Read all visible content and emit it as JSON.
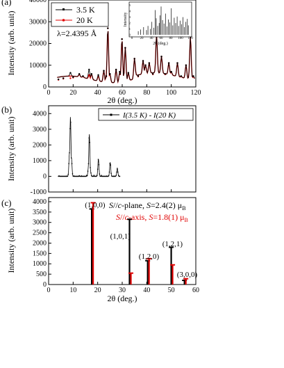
{
  "chart_data": [
    {
      "panel_label": "(a)",
      "type": "line",
      "xlabel": "2θ (deg.)",
      "ylabel": "Intensity (arb. unit)",
      "xlim": [
        0,
        120
      ],
      "ylim": [
        0,
        40000
      ],
      "xticks": [
        "0",
        "20",
        "40",
        "60",
        "80",
        "100",
        "120"
      ],
      "yticks": [
        "0",
        "10000",
        "20000",
        "30000",
        "40000"
      ],
      "annotation": "λ=2.4395 Å",
      "legend": {
        "placement": "top-left"
      },
      "series": [
        {
          "name": "3.5 K",
          "color": "#000000",
          "x": [
            8,
            12,
            17.8,
            20,
            25,
            28,
            33,
            35,
            40.5,
            45,
            47,
            48.3,
            50,
            55,
            58,
            59.8,
            62.5,
            65,
            70,
            73,
            77,
            79,
            82,
            85,
            88,
            92,
            95,
            98,
            100,
            105,
            108,
            112,
            115.6,
            118
          ],
          "y": [
            3500,
            4000,
            6500,
            4500,
            6000,
            5000,
            8000,
            6000,
            5500,
            7500,
            5000,
            27000,
            6000,
            8000,
            7000,
            22000,
            18000,
            6500,
            13000,
            5000,
            12000,
            10000,
            11000,
            6000,
            24000,
            14000,
            6000,
            11000,
            7000,
            11000,
            5000,
            10000,
            23000,
            5000
          ]
        },
        {
          "name": "20 K",
          "color": "#e00000",
          "x": [
            8,
            12,
            17.8,
            20,
            25,
            28,
            33,
            35,
            40.5,
            45,
            47,
            48.3,
            50,
            55,
            58,
            59.8,
            62.5,
            65,
            70,
            73,
            77,
            79,
            82,
            85,
            88,
            92,
            95,
            98,
            100,
            105,
            108,
            112,
            115.6,
            118
          ],
          "y": [
            3300,
            3800,
            4000,
            4300,
            5800,
            4800,
            5500,
            5800,
            5000,
            7300,
            4800,
            27000,
            5800,
            7800,
            6800,
            22000,
            18000,
            6300,
            13000,
            4800,
            12000,
            10000,
            11000,
            5800,
            24000,
            14000,
            5800,
            11000,
            6800,
            11000,
            4800,
            10000,
            23000,
            4800
          ]
        }
      ],
      "inset": {
        "ylabel": "Intensity",
        "xlabel": "2θ (deg.)",
        "xlim": [
          0,
          120
        ],
        "xticks": [
          "0",
          "20",
          "40",
          "60",
          "80",
          "100",
          "120"
        ],
        "yticks": [
          "0",
          "1",
          "2",
          "3",
          "4",
          "5"
        ],
        "peaks_x": [
          13,
          18,
          24,
          30,
          33,
          38,
          41,
          45,
          48,
          50,
          53,
          56,
          58,
          60,
          63,
          66,
          69,
          72,
          75,
          78,
          81,
          84,
          87,
          90,
          93,
          96,
          99,
          102,
          105,
          108,
          111,
          114,
          116
        ],
        "peaks_y": [
          0.6,
          0.9,
          1.3,
          0.8,
          1.5,
          1.0,
          2.2,
          1.2,
          4.2,
          2.8,
          1.5,
          2.0,
          3.3,
          4.8,
          2.5,
          1.9,
          3.6,
          1.4,
          2.6,
          2.1,
          4.5,
          1.6,
          2.9,
          2.0,
          3.1,
          1.5,
          2.4,
          1.8,
          3.0,
          1.3,
          2.2,
          2.7,
          1.6
        ]
      }
    },
    {
      "panel_label": "(b)",
      "type": "line",
      "ylabel": "Intensity (arb. unit)",
      "xlim": [
        0,
        120
      ],
      "ylim": [
        -1000,
        4500
      ],
      "yticks": [
        "-1000",
        "0",
        "1000",
        "2000",
        "3000",
        "4000"
      ],
      "legend": {
        "placement": "top-right",
        "label": "I(3.5 K) - I(20 K)"
      },
      "series": [
        {
          "name": "I(3.5 K) - I(20 K)",
          "color": "#000000",
          "x": [
            8,
            10,
            12,
            14,
            16,
            17,
            17.8,
            18.6,
            20,
            22,
            25,
            28,
            31,
            32.5,
            33.2,
            34,
            36,
            38,
            40,
            40.6,
            41.5,
            43,
            46,
            48,
            49.5,
            50.2,
            51,
            53,
            55,
            56,
            57,
            58
          ],
          "y": [
            -200,
            -300,
            -250,
            -100,
            200,
            1500,
            3800,
            1200,
            -100,
            -200,
            -300,
            -350,
            -200,
            600,
            2700,
            400,
            -200,
            -150,
            100,
            1100,
            100,
            -200,
            -100,
            0,
            300,
            900,
            100,
            -100,
            100,
            500,
            -50,
            -50
          ]
        }
      ]
    },
    {
      "panel_label": "(c)",
      "type": "bar",
      "xlabel": "2θ (deg.)",
      "ylabel": "Intensity (arb. unit)",
      "xlim": [
        0,
        60
      ],
      "ylim": [
        0,
        4200
      ],
      "xticks": [
        "0",
        "10",
        "20",
        "30",
        "40",
        "50",
        "60"
      ],
      "yticks": [
        "0",
        "500",
        "1000",
        "1500",
        "2000",
        "2500",
        "3000",
        "3500",
        "4000"
      ],
      "legend_lines": [
        {
          "parts": [
            "S",
            "//",
            "c",
            "-plane, ",
            "S",
            "=2.4(2) μ",
            "B"
          ],
          "color": "#000000"
        },
        {
          "parts": [
            "S",
            "//",
            "c",
            "-axis, ",
            "S",
            "=1.8(1) μ",
            "B"
          ],
          "color": "#e00000"
        }
      ],
      "peaks": [
        {
          "label": "(1,0,0)",
          "x": 17.8,
          "black": 3650,
          "red": 3950
        },
        {
          "label": "(1,0,1)",
          "x": 33.2,
          "black": 3150,
          "red": 550
        },
        {
          "label": "(1,2,0)",
          "x": 40.6,
          "black": 1150,
          "red": 1250
        },
        {
          "label": "(1,2,1)",
          "x": 50.2,
          "black": 1800,
          "red": 950
        },
        {
          "label": "(3,0,0)",
          "x": 55.6,
          "black": 200,
          "red": 280
        }
      ]
    }
  ]
}
